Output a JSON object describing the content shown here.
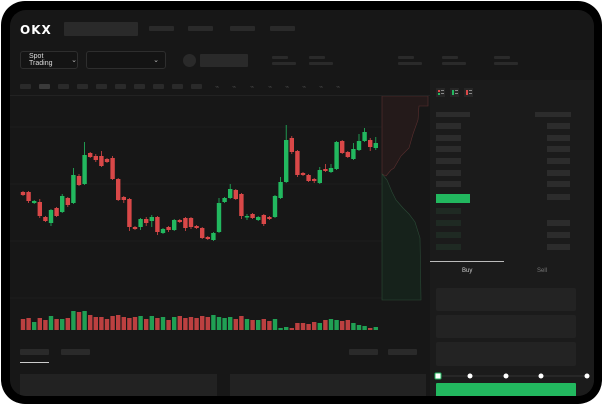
{
  "header": {
    "logo": "OKX"
  },
  "toolbar": {
    "market_select": "Spot Trading"
  },
  "order_form": {
    "buy_tab": "Buy",
    "sell_tab": "Sell",
    "slider_value": 0
  },
  "colors": {
    "up": "#22b85f",
    "down": "#d94848",
    "background": "#171717"
  },
  "icons": [
    "chevron-down-icon",
    "orderbook-both-icon",
    "orderbook-bids-icon",
    "orderbook-asks-icon"
  ],
  "chart": {
    "candles_ohlc": [
      [
        68,
        69,
        64,
        65
      ],
      [
        68,
        69,
        57,
        59
      ],
      [
        57,
        60,
        56,
        59
      ],
      [
        58,
        61,
        42,
        44
      ],
      [
        43,
        44,
        38,
        39
      ],
      [
        37,
        51,
        34,
        50
      ],
      [
        52,
        53,
        43,
        44
      ],
      [
        48,
        66,
        47,
        64
      ],
      [
        62,
        63,
        53,
        55
      ],
      [
        57,
        92,
        56,
        85
      ],
      [
        84,
        86,
        74,
        75
      ],
      [
        76,
        118,
        75,
        105
      ],
      [
        107,
        108,
        102,
        103
      ],
      [
        104,
        106,
        98,
        100
      ],
      [
        104,
        109,
        93,
        94
      ],
      [
        101,
        102,
        97,
        98
      ],
      [
        102,
        104,
        80,
        81
      ],
      [
        81,
        82,
        59,
        60
      ],
      [
        63,
        64,
        57,
        60
      ],
      [
        61,
        62,
        29,
        33
      ],
      [
        33,
        34,
        30,
        31
      ],
      [
        33,
        42,
        30,
        41
      ],
      [
        41,
        43,
        34,
        37
      ],
      [
        39,
        45,
        33,
        43
      ],
      [
        43,
        44,
        25,
        28
      ],
      [
        27,
        32,
        26,
        31
      ],
      [
        33,
        34,
        28,
        30
      ],
      [
        30,
        41,
        29,
        40
      ],
      [
        40,
        41,
        37,
        38
      ],
      [
        42,
        43,
        29,
        32
      ],
      [
        42,
        43,
        31,
        33
      ],
      [
        34,
        35,
        31,
        32
      ],
      [
        32,
        33,
        21,
        22
      ],
      [
        23,
        24,
        20,
        21
      ],
      [
        20,
        28,
        19,
        27
      ],
      [
        28,
        62,
        27,
        57
      ],
      [
        58,
        63,
        57,
        62
      ],
      [
        62,
        76,
        61,
        71
      ],
      [
        70,
        71,
        60,
        61
      ],
      [
        66,
        67,
        41,
        44
      ],
      [
        43,
        46,
        40,
        44
      ],
      [
        46,
        47,
        41,
        42
      ],
      [
        40,
        44,
        39,
        43
      ],
      [
        45,
        46,
        34,
        36
      ],
      [
        43,
        44,
        40,
        41
      ],
      [
        43,
        65,
        42,
        64
      ],
      [
        62,
        83,
        61,
        78
      ],
      [
        78,
        135,
        77,
        120
      ],
      [
        122,
        124,
        106,
        108
      ],
      [
        109,
        110,
        83,
        85
      ],
      [
        87,
        88,
        84,
        85
      ],
      [
        85,
        86,
        78,
        79
      ],
      [
        81,
        82,
        77,
        79
      ],
      [
        77,
        93,
        76,
        90
      ],
      [
        91,
        96,
        88,
        89
      ],
      [
        88,
        96,
        87,
        92
      ],
      [
        91,
        119,
        90,
        118
      ],
      [
        119,
        120,
        106,
        107
      ],
      [
        108,
        109,
        102,
        103
      ],
      [
        101,
        117,
        100,
        111
      ],
      [
        110,
        126,
        109,
        119
      ],
      [
        119,
        132,
        118,
        128
      ],
      [
        120,
        122,
        109,
        113
      ],
      [
        112,
        123,
        110,
        117
      ]
    ],
    "volumes": [
      11,
      12,
      8,
      12,
      10,
      14,
      11,
      11,
      12,
      19,
      18,
      19,
      15,
      13,
      13,
      11,
      14,
      15,
      13,
      12,
      13,
      14,
      11,
      14,
      12,
      13,
      10,
      13,
      14,
      12,
      13,
      12,
      14,
      13,
      15,
      13,
      12,
      13,
      11,
      14,
      11,
      10,
      10,
      11,
      9,
      11,
      2,
      3,
      2,
      7,
      7,
      6,
      8,
      7,
      10,
      11,
      10,
      9,
      10,
      7,
      5,
      4,
      2,
      3
    ]
  }
}
